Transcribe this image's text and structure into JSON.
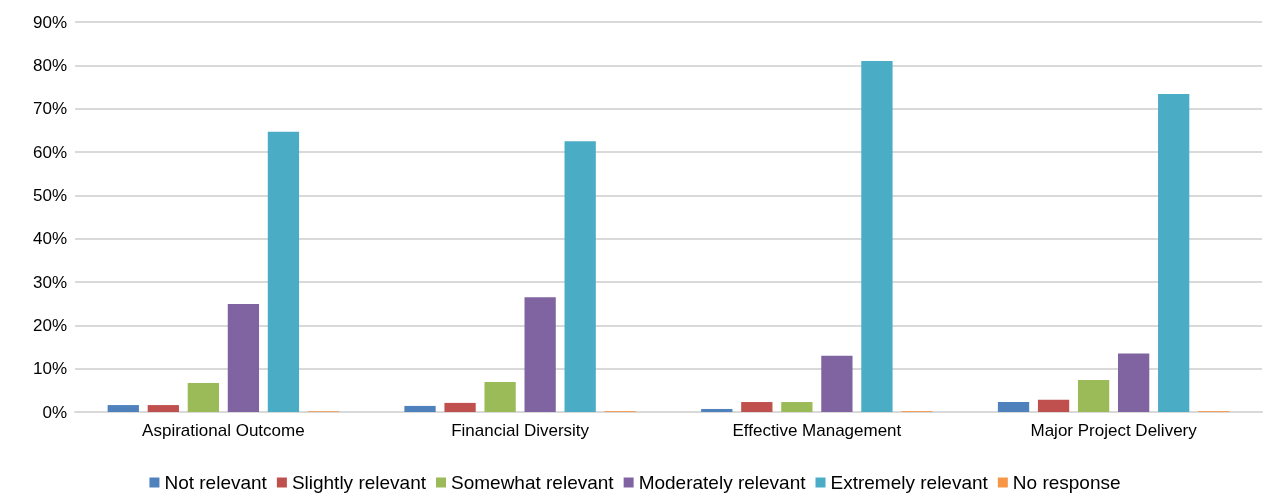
{
  "chart_data": {
    "type": "bar",
    "categories": [
      "Aspirational Outcome",
      "Financial Diversity",
      "Effective Management",
      "Major Project Delivery"
    ],
    "series": [
      {
        "name": "Not relevant",
        "color": "#4f81bd",
        "values": [
          1.6,
          1.4,
          0.7,
          2.3
        ]
      },
      {
        "name": "Slightly relevant",
        "color": "#c0504d",
        "values": [
          1.6,
          2.1,
          2.3,
          2.8
        ]
      },
      {
        "name": "Somewhat relevant",
        "color": "#9bbb59",
        "values": [
          6.7,
          6.9,
          2.3,
          7.4
        ]
      },
      {
        "name": "Moderately relevant",
        "color": "#8064a2",
        "values": [
          24.9,
          26.5,
          13.0,
          13.5
        ]
      },
      {
        "name": "Extremely relevant",
        "color": "#4bacc6",
        "values": [
          64.7,
          62.5,
          81.0,
          73.4
        ]
      },
      {
        "name": "No response",
        "color": "#f79646",
        "values": [
          0.2,
          0.2,
          0.2,
          0.2
        ]
      }
    ],
    "ylim": [
      0,
      90
    ],
    "yticks": [
      {
        "value": 0,
        "label": "0%"
      },
      {
        "value": 10,
        "label": "10%"
      },
      {
        "value": 20,
        "label": "20%"
      },
      {
        "value": 30,
        "label": "30%"
      },
      {
        "value": 40,
        "label": "40%"
      },
      {
        "value": 50,
        "label": "50%"
      },
      {
        "value": 60,
        "label": "60%"
      },
      {
        "value": 70,
        "label": "70%"
      },
      {
        "value": 80,
        "label": "80%"
      },
      {
        "value": 90,
        "label": "90%"
      }
    ],
    "grid": "y",
    "legend": "bottom"
  }
}
